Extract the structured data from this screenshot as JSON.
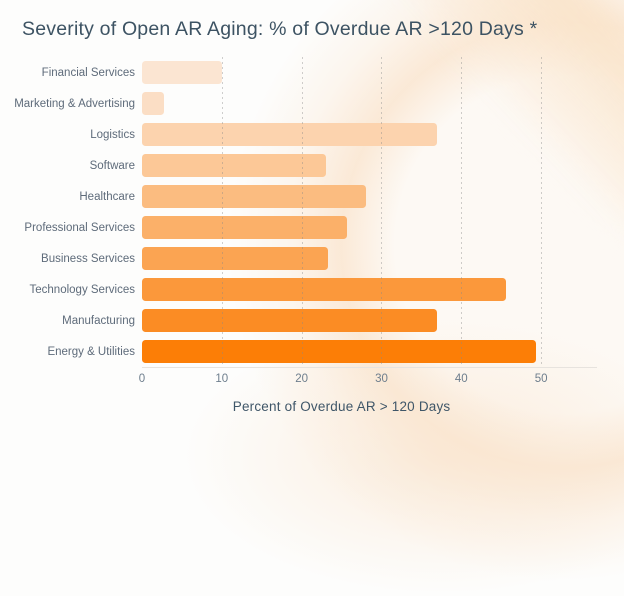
{
  "chart_data": {
    "type": "bar",
    "orientation": "horizontal",
    "title": "Severity of Open AR Aging: % of Overdue AR >120 Days *",
    "categories": [
      "Financial Services",
      "Marketing & Advertising",
      "Logistics",
      "Software",
      "Healthcare",
      "Professional Services",
      "Business Services",
      "Technology Services",
      "Manufacturing",
      "Energy & Utilities"
    ],
    "values": [
      10,
      2.7,
      37,
      23,
      28,
      25.7,
      23.3,
      45.6,
      37,
      49.4
    ],
    "bar_colors": [
      "#FBE5D2",
      "#FBDEC5",
      "#FCD3AE",
      "#FCC897",
      "#FBBC80",
      "#FBB069",
      "#FBA452",
      "#FB983B",
      "#FB8C24",
      "#FC7E06"
    ],
    "xlabel": "Percent of Overdue AR > 120 Days",
    "ylabel": "",
    "xlim": [
      0,
      57
    ],
    "xticks": [
      0,
      10,
      20,
      30,
      40,
      50
    ],
    "gridlines": [
      10,
      20,
      30,
      40,
      50
    ],
    "grid": "vertical-dotted",
    "legend": "none"
  },
  "colors": {
    "title_text": "#3D5363",
    "category_text": "#5E6B7A",
    "tick_text": "#6E7E8D",
    "axis_label_text": "#3F5668",
    "axis_line": "#E7E3DE",
    "gridline": "#D9D9D9",
    "background": "#FDFDFC",
    "background_tint": "#FAE4CD"
  }
}
